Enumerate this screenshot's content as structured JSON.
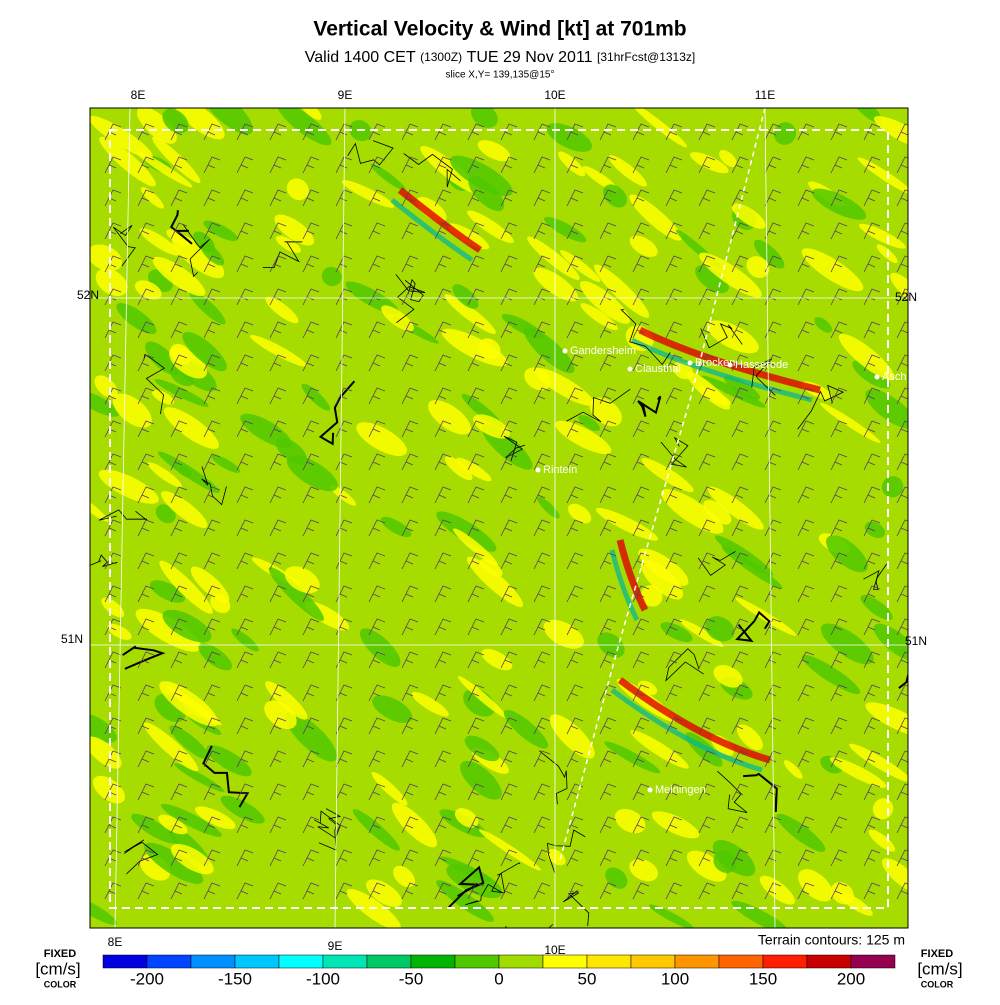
{
  "header": {
    "title": "Vertical Velocity & Wind [kt] at 701mb",
    "subtitle": {
      "valid": "Valid 1400 CET",
      "utc": "(1300Z)",
      "date": "TUE 29 Nov 2011",
      "forecast": "[31hrFcst@1313z]"
    },
    "slice": "slice X,Y= 139,135@15°"
  },
  "map": {
    "top_lon_labels": [
      "8E",
      "9E",
      "10E",
      "11E"
    ],
    "bottom_lon_labels": [
      "8E",
      "9E",
      "10E"
    ],
    "left_lat_labels": [
      "52N",
      "51N"
    ],
    "right_lat_labels": [
      "52N",
      "51N"
    ],
    "places": [
      "Gandersheim",
      "Clausthal",
      "Brocken",
      "Hasserode",
      "Asch",
      "Rinteln",
      "Meiningen"
    ],
    "note": "Terrain contours: 125 m"
  },
  "colorbar": {
    "left": {
      "fixed": "FIXED",
      "unit": "[cm/s]",
      "color": "COLOR"
    },
    "right": {
      "fixed": "FIXED",
      "unit": "[cm/s]",
      "color": "COLOR"
    },
    "ticks": [
      -200,
      -150,
      -100,
      -50,
      0,
      50,
      100,
      150,
      200
    ],
    "colors": [
      "#0000e0",
      "#0044ff",
      "#0090ff",
      "#00c8ff",
      "#00ffff",
      "#00e6b4",
      "#00c864",
      "#00b400",
      "#50c800",
      "#a0dc00",
      "#ffff00",
      "#ffe600",
      "#ffc800",
      "#ff9600",
      "#ff6400",
      "#ff1e00",
      "#c80000",
      "#960050"
    ]
  }
}
